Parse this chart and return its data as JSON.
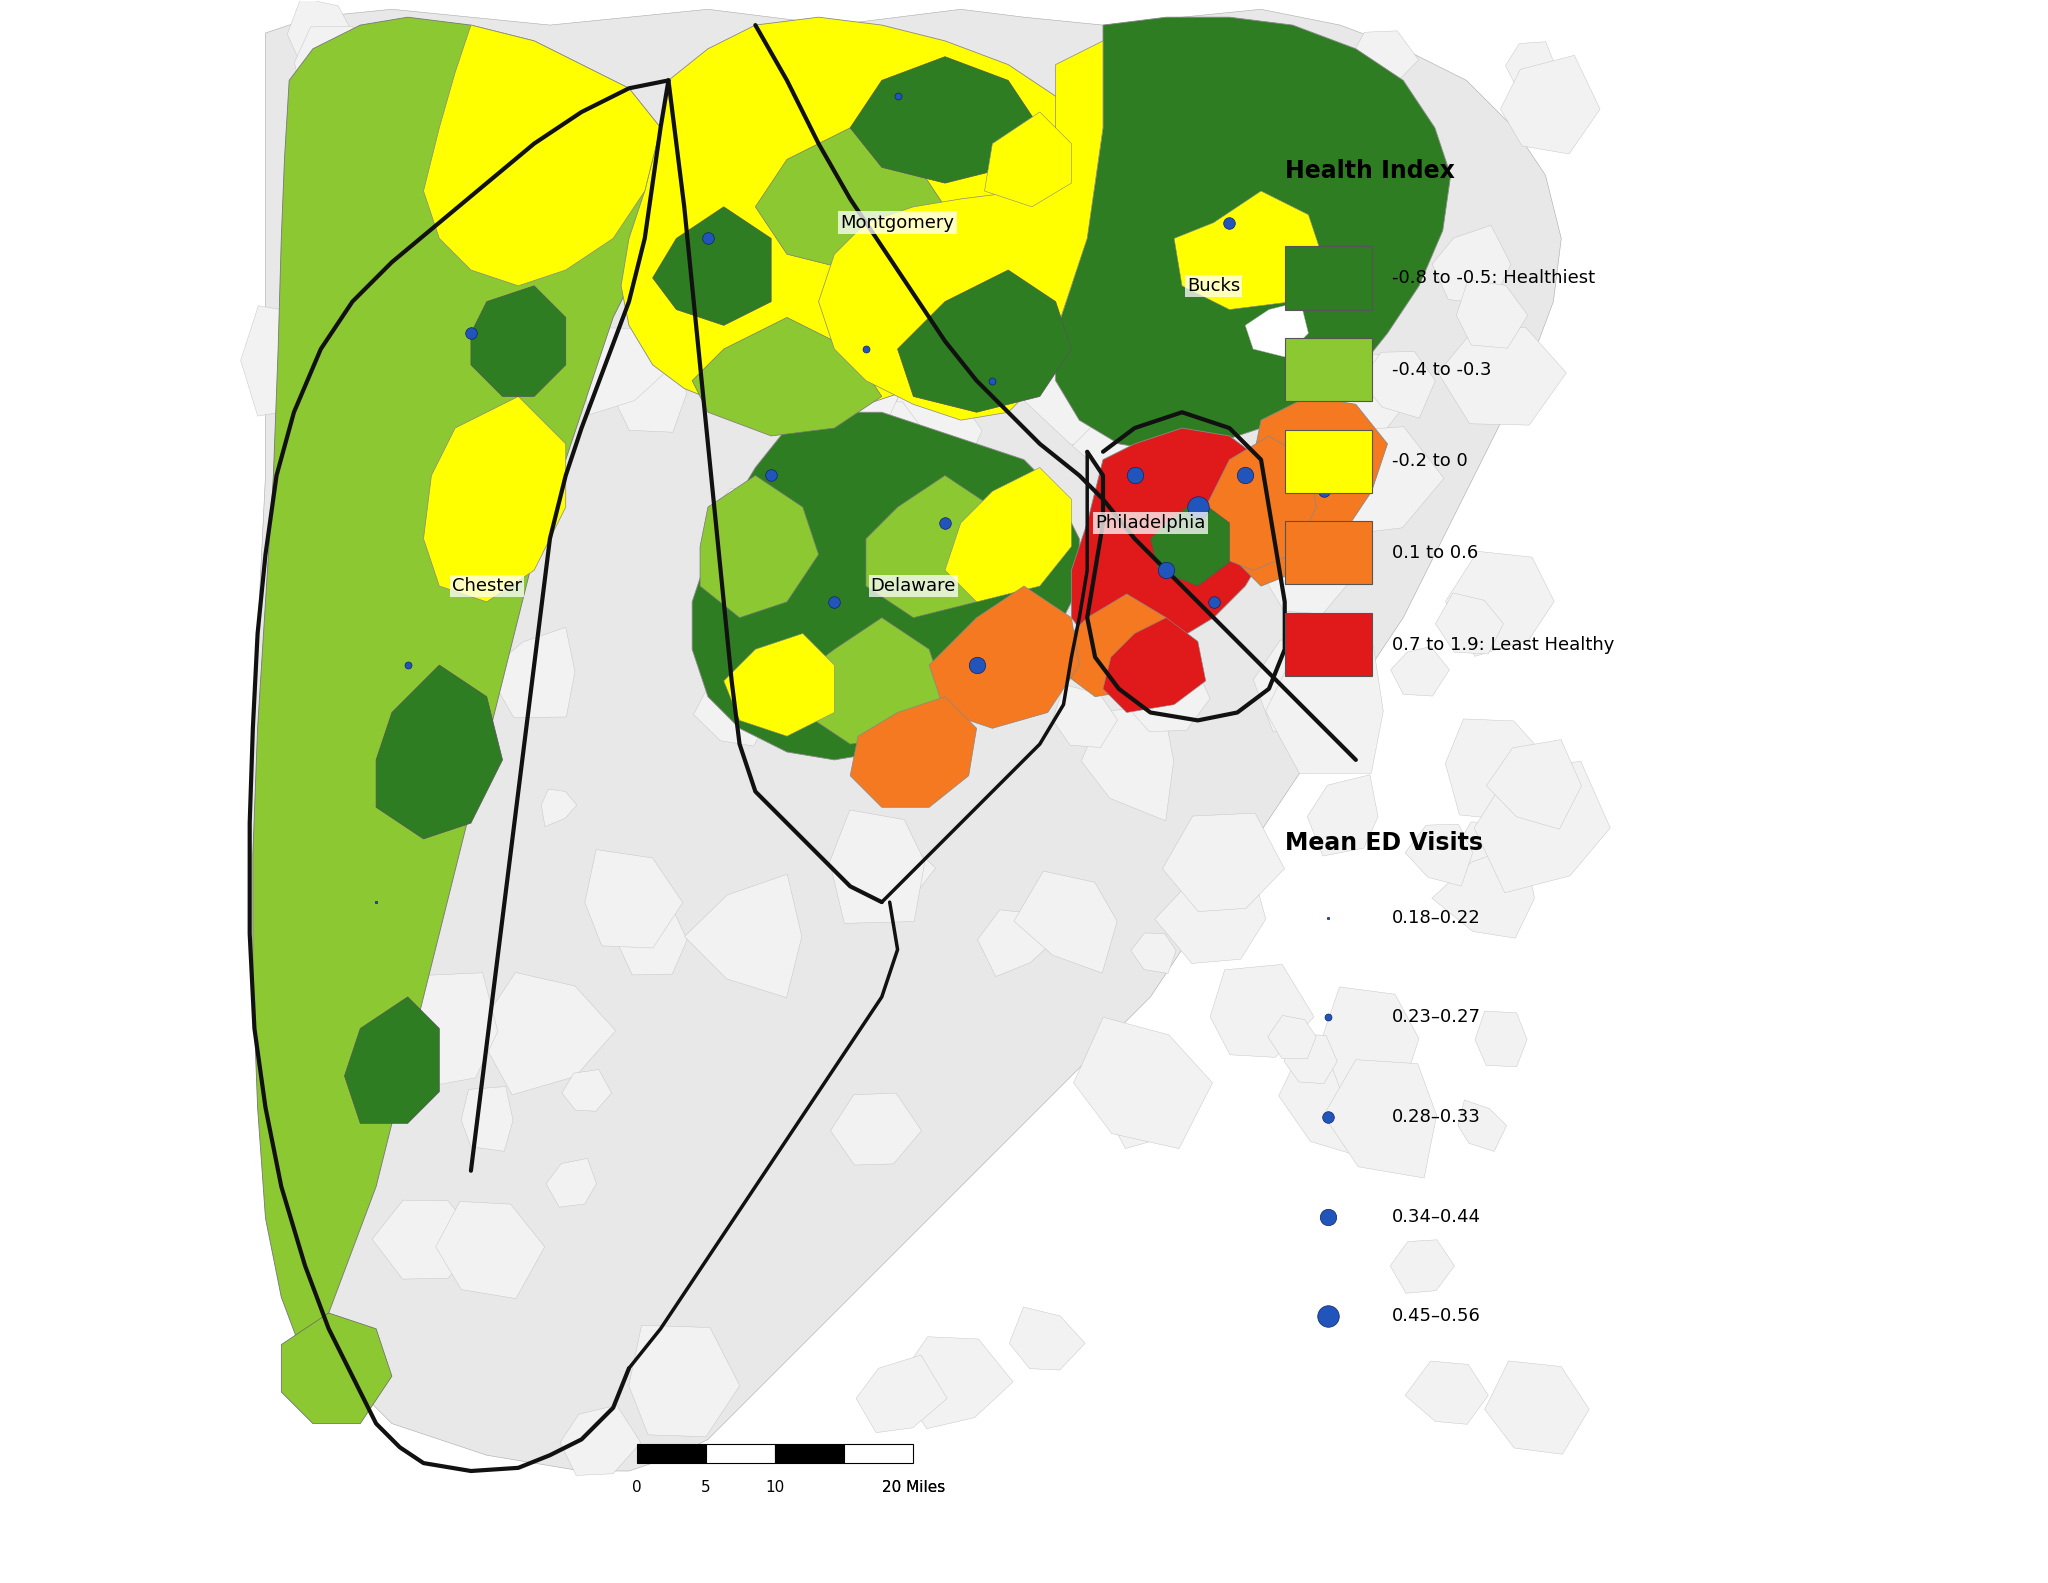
{
  "background_color": "#ffffff",
  "c_dark_green": "#2e7d22",
  "c_light_green": "#8cc832",
  "c_yellow": "#ffff00",
  "c_orange": "#f47920",
  "c_red": "#e0191a",
  "c_gray_bg": "#d8d8d8",
  "c_gray_border": "#b0b0b0",
  "c_thick_border": "#111111",
  "c_white_zip": "#ffffff",
  "dot_color": "#2255bb",
  "dot_edge": "#112266",
  "dot_sizes": [
    3,
    25,
    70,
    140,
    240
  ],
  "dot_labels": [
    "0.18–0.22",
    "0.23–0.27",
    "0.28–0.33",
    "0.34–0.44",
    "0.45–0.56"
  ],
  "hi_labels": [
    "-0.8 to -0.5: Healthiest",
    "-0.4 to -0.3",
    "-0.2 to 0",
    "0.1 to 0.6",
    "0.7 to 1.9: Least Healthy"
  ],
  "county_labels": [
    "Bucks",
    "Montgomery",
    "Chester",
    "Delaware",
    "Philadelphia"
  ]
}
